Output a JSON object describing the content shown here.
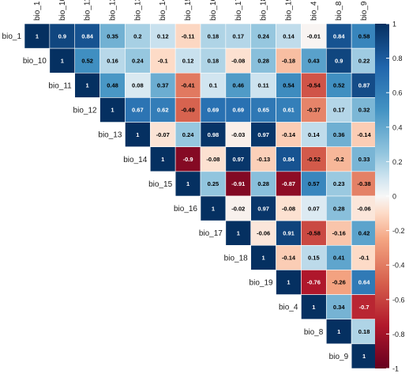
{
  "chart_data": {
    "type": "heatmap",
    "title": "",
    "layout": "upper-triangle",
    "variables": [
      "bio_1",
      "bio_10",
      "bio_11",
      "bio_12",
      "bio_13",
      "bio_14",
      "bio_15",
      "bio_16",
      "bio_17",
      "bio_18",
      "bio_19",
      "bio_4",
      "bio_8",
      "bio_9"
    ],
    "matrix": [
      [
        1,
        0.9,
        0.84,
        0.35,
        0.2,
        0.12,
        -0.11,
        0.18,
        0.17,
        0.24,
        0.14,
        -0.01,
        0.84,
        0.58
      ],
      [
        null,
        1,
        0.52,
        0.16,
        0.24,
        -0.1,
        0.12,
        0.18,
        -0.08,
        0.28,
        -0.18,
        0.43,
        0.9,
        0.22
      ],
      [
        null,
        null,
        1,
        0.48,
        0.08,
        0.37,
        -0.41,
        0.1,
        0.46,
        0.11,
        0.54,
        -0.54,
        0.52,
        0.87
      ],
      [
        null,
        null,
        null,
        1,
        0.67,
        0.62,
        -0.49,
        0.69,
        0.69,
        0.65,
        0.61,
        -0.37,
        0.17,
        0.32
      ],
      [
        null,
        null,
        null,
        null,
        1,
        -0.07,
        0.24,
        0.98,
        -0.03,
        0.97,
        -0.14,
        0.14,
        0.36,
        -0.14
      ],
      [
        null,
        null,
        null,
        null,
        null,
        1,
        -0.9,
        -0.08,
        0.97,
        -0.13,
        0.84,
        -0.52,
        -0.2,
        0.33
      ],
      [
        null,
        null,
        null,
        null,
        null,
        null,
        1,
        0.25,
        -0.91,
        0.28,
        -0.87,
        0.57,
        0.23,
        -0.38
      ],
      [
        null,
        null,
        null,
        null,
        null,
        null,
        null,
        1,
        -0.02,
        0.97,
        -0.08,
        0.07,
        0.28,
        -0.06
      ],
      [
        null,
        null,
        null,
        null,
        null,
        null,
        null,
        null,
        1,
        -0.06,
        0.91,
        -0.58,
        -0.16,
        0.42
      ],
      [
        null,
        null,
        null,
        null,
        null,
        null,
        null,
        null,
        null,
        1,
        -0.14,
        0.15,
        0.41,
        -0.1
      ],
      [
        null,
        null,
        null,
        null,
        null,
        null,
        null,
        null,
        null,
        null,
        1,
        -0.76,
        -0.26,
        0.64
      ],
      [
        null,
        null,
        null,
        null,
        null,
        null,
        null,
        null,
        null,
        null,
        null,
        1,
        0.34,
        -0.7
      ],
      [
        null,
        null,
        null,
        null,
        null,
        null,
        null,
        null,
        null,
        null,
        null,
        null,
        1,
        0.18
      ],
      [
        null,
        null,
        null,
        null,
        null,
        null,
        null,
        null,
        null,
        null,
        null,
        null,
        null,
        1
      ]
    ],
    "color_scale": {
      "min": -1,
      "max": 1,
      "stops": [
        {
          "value": -1,
          "color": "#67001f"
        },
        {
          "value": -0.75,
          "color": "#b2182b"
        },
        {
          "value": -0.5,
          "color": "#d6604d"
        },
        {
          "value": -0.25,
          "color": "#f4a582"
        },
        {
          "value": -0.1,
          "color": "#fddbc7"
        },
        {
          "value": 0,
          "color": "#f7f7f7"
        },
        {
          "value": 0.1,
          "color": "#d1e5f0"
        },
        {
          "value": 0.25,
          "color": "#92c5de"
        },
        {
          "value": 0.5,
          "color": "#4393c3"
        },
        {
          "value": 0.75,
          "color": "#2166ac"
        },
        {
          "value": 1,
          "color": "#053061"
        }
      ]
    },
    "colorbar": {
      "placement": "right",
      "ticks": [
        1,
        0.8,
        0.6,
        0.4,
        0.2,
        0,
        -0.2,
        -0.4,
        -0.6,
        -0.8,
        -1
      ],
      "tick_labels": [
        "1",
        "0.8",
        "0.6",
        "0.4",
        "0.2",
        "0",
        "-0.2",
        "-0.4",
        "-0.6",
        "-0.8",
        "-1"
      ]
    },
    "grid": true
  }
}
